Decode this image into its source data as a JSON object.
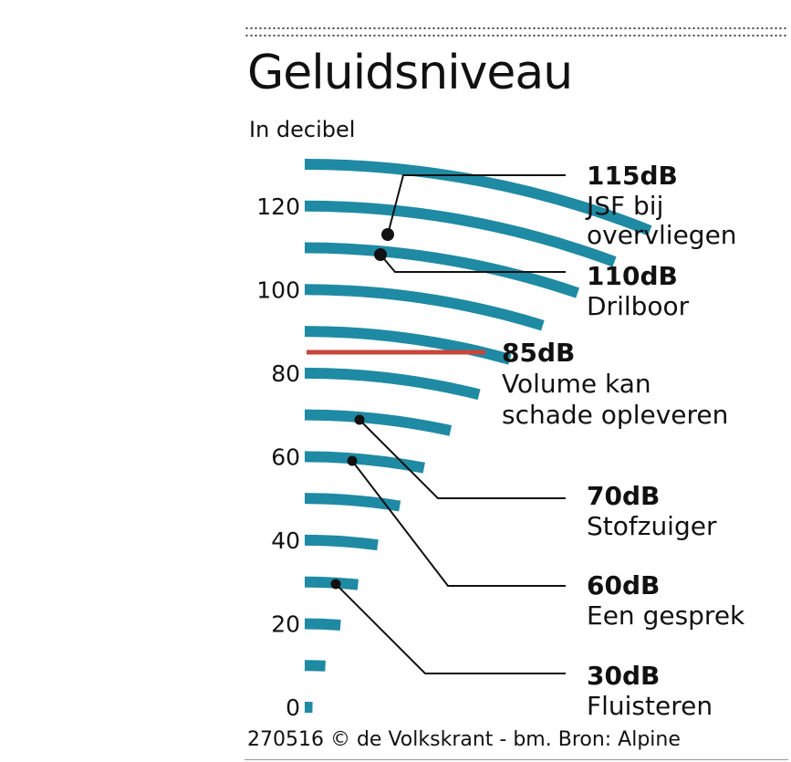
{
  "header": {
    "title": "Geluidsniveau",
    "subtitle": "In decibel"
  },
  "footer": {
    "source": "270516 © de Volkskrant - bm. Bron: Alpine"
  },
  "colors": {
    "arc": "#1f8aa3",
    "threshold": "#c8463a",
    "text": "#111111"
  },
  "chart_data": {
    "type": "other",
    "title": "Geluidsniveau",
    "ylabel": "In decibel",
    "ylim": [
      0,
      130
    ],
    "yticks": [
      0,
      20,
      40,
      60,
      80,
      100,
      120
    ],
    "arc_levels": [
      0,
      10,
      20,
      30,
      40,
      50,
      60,
      70,
      80,
      90,
      100,
      110,
      120,
      130
    ],
    "threshold": {
      "value": 85,
      "value_label": "85dB",
      "lines": [
        "Volume kan",
        "schade opleveren"
      ]
    },
    "annotations": [
      {
        "value": 115,
        "value_label": "115dB",
        "lines": [
          "JSF bij",
          "overvliegen"
        ]
      },
      {
        "value": 110,
        "value_label": "110dB",
        "lines": [
          "Drilboor"
        ]
      },
      {
        "value": 70,
        "value_label": "70dB",
        "lines": [
          "Stofzuiger"
        ]
      },
      {
        "value": 60,
        "value_label": "60dB",
        "lines": [
          "Een gesprek"
        ]
      },
      {
        "value": 30,
        "value_label": "30dB",
        "lines": [
          "Fluisteren"
        ]
      }
    ]
  }
}
